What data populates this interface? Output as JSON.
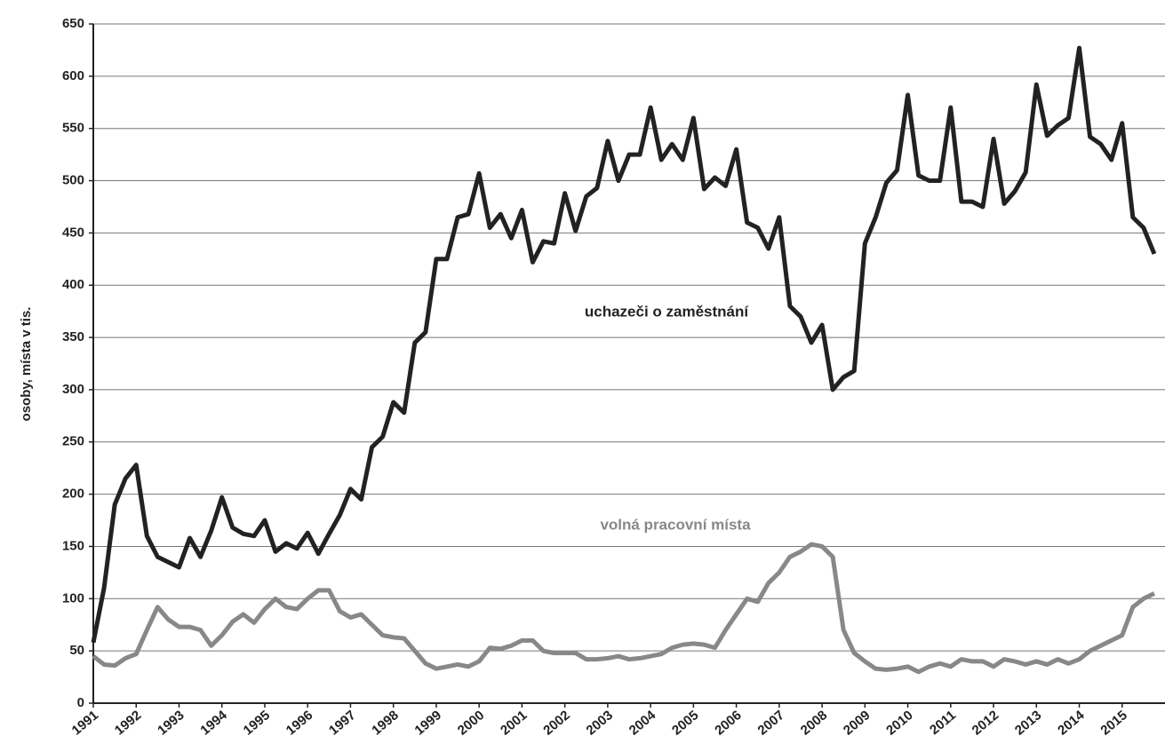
{
  "chart_data": {
    "type": "line",
    "ylabel": "osoby, místa v tis.",
    "annotations": [
      "uchazeči o zaměstnání",
      "volná pracovní místa"
    ],
    "x": [
      1991,
      1991.25,
      1991.5,
      1991.75,
      1992,
      1992.25,
      1992.5,
      1992.75,
      1993,
      1993.25,
      1993.5,
      1993.75,
      1994,
      1994.25,
      1994.5,
      1994.75,
      1995,
      1995.25,
      1995.5,
      1995.75,
      1996,
      1996.25,
      1996.5,
      1996.75,
      1997,
      1997.25,
      1997.5,
      1997.75,
      1998,
      1998.25,
      1998.5,
      1998.75,
      1999,
      1999.25,
      1999.5,
      1999.75,
      2000,
      2000.25,
      2000.5,
      2000.75,
      2001,
      2001.25,
      2001.5,
      2001.75,
      2002,
      2002.25,
      2002.5,
      2002.75,
      2003,
      2003.25,
      2003.5,
      2003.75,
      2004,
      2004.25,
      2004.5,
      2004.75,
      2005,
      2005.25,
      2005.5,
      2005.75,
      2006,
      2006.25,
      2006.5,
      2006.75,
      2007,
      2007.25,
      2007.5,
      2007.75,
      2008,
      2008.25,
      2008.5,
      2008.75,
      2009,
      2009.25,
      2009.5,
      2009.75,
      2010,
      2010.25,
      2010.5,
      2010.75,
      2011,
      2011.25,
      2011.5,
      2011.75,
      2012,
      2012.25,
      2012.5,
      2012.75,
      2013,
      2013.25,
      2013.5,
      2013.75,
      2014,
      2014.25,
      2014.5,
      2014.75,
      2015,
      2015.25,
      2015.5,
      2015.75
    ],
    "series": [
      {
        "name": "uchazeči o zaměstnání",
        "color": "#222222",
        "values": [
          58,
          110,
          190,
          215,
          228,
          160,
          140,
          135,
          130,
          158,
          140,
          165,
          197,
          168,
          162,
          160,
          175,
          145,
          153,
          148,
          163,
          143,
          162,
          180,
          205,
          195,
          245,
          255,
          288,
          278,
          345,
          355,
          425,
          425,
          465,
          468,
          507,
          455,
          468,
          445,
          472,
          422,
          442,
          440,
          488,
          452,
          485,
          493,
          538,
          500,
          525,
          525,
          570,
          520,
          535,
          520,
          560,
          492,
          503,
          495,
          530,
          460,
          455,
          435,
          465,
          380,
          370,
          345,
          362,
          300,
          312,
          318,
          440,
          465,
          498,
          510,
          582,
          505,
          500,
          500,
          570,
          480,
          480,
          475,
          540,
          478,
          490,
          508,
          592,
          543,
          553,
          560,
          627,
          542,
          535,
          520,
          555,
          465,
          455,
          430
        ]
      },
      {
        "name": "volná pracovní místa",
        "color": "#888888",
        "values": [
          45,
          37,
          36,
          43,
          47,
          70,
          92,
          80,
          73,
          73,
          70,
          55,
          65,
          78,
          85,
          77,
          90,
          100,
          92,
          90,
          100,
          108,
          108,
          88,
          82,
          85,
          75,
          65,
          63,
          62,
          50,
          38,
          33,
          35,
          37,
          35,
          40,
          53,
          52,
          55,
          60,
          60,
          50,
          48,
          48,
          48,
          42,
          42,
          43,
          45,
          42,
          43,
          45,
          47,
          53,
          56,
          57,
          56,
          53,
          70,
          85,
          100,
          97,
          115,
          125,
          140,
          145,
          152,
          150,
          140,
          70,
          48,
          40,
          33,
          32,
          33,
          35,
          30,
          35,
          38,
          35,
          42,
          40,
          40,
          35,
          42,
          40,
          37,
          40,
          37,
          42,
          38,
          42,
          50,
          55,
          60,
          65,
          92,
          100,
          105
        ]
      }
    ],
    "xlim": [
      1991,
      2016
    ],
    "xticks": [
      1991,
      1992,
      1993,
      1994,
      1995,
      1996,
      1997,
      1998,
      1999,
      2000,
      2001,
      2002,
      2003,
      2004,
      2005,
      2006,
      2007,
      2008,
      2009,
      2010,
      2011,
      2012,
      2013,
      2014,
      2015
    ],
    "ylim": [
      0,
      650
    ],
    "yticks": [
      0,
      50,
      100,
      150,
      200,
      250,
      300,
      350,
      400,
      450,
      500,
      550,
      600,
      650
    ],
    "grid": true
  }
}
